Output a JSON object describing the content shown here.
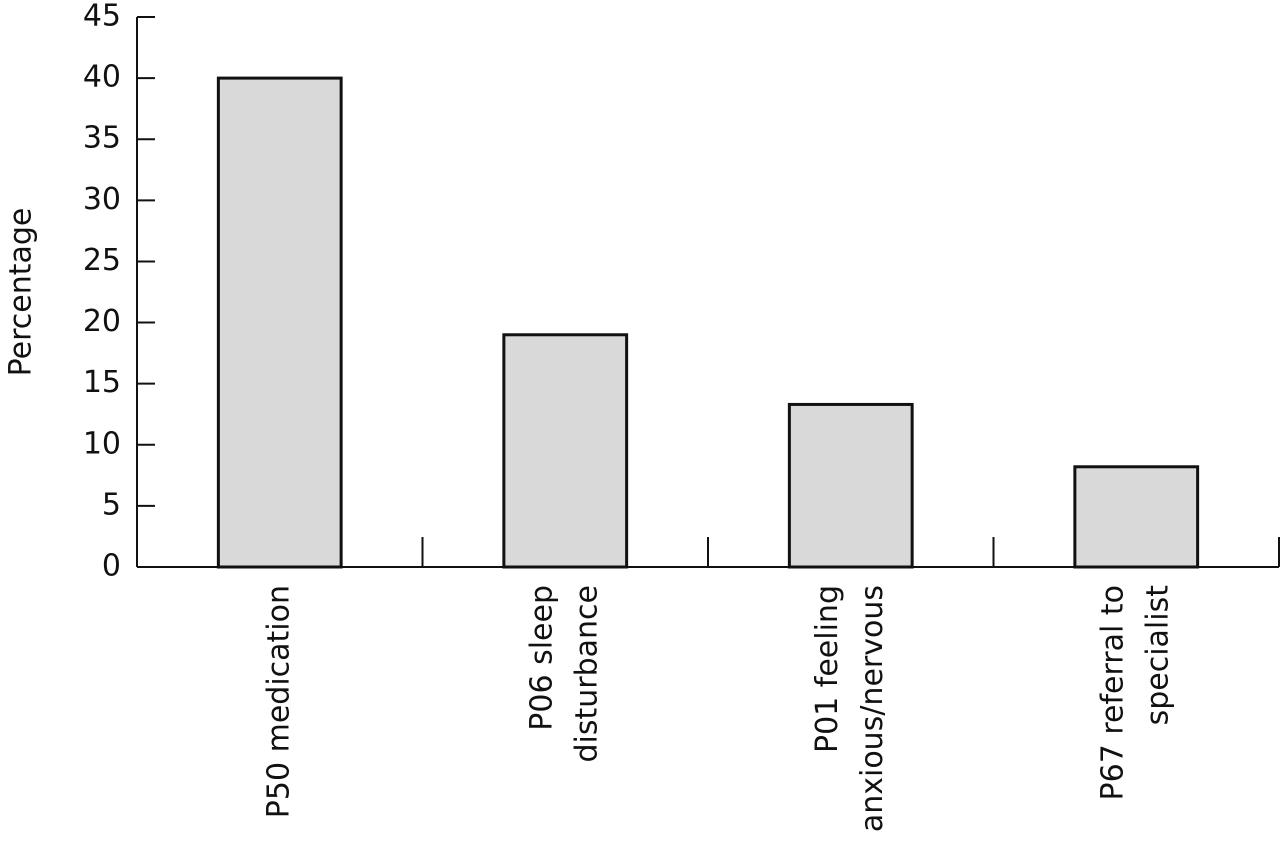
{
  "chart_data": {
    "type": "bar",
    "y_label": "Percentage",
    "categories": [
      [
        "P50 medication"
      ],
      [
        "P06 sleep",
        "disturbance"
      ],
      [
        "P01 feeling",
        "anxious/nervous"
      ],
      [
        "P67 referral to",
        "specialist"
      ]
    ],
    "values": [
      40,
      19,
      13.3,
      8.2
    ],
    "color": "#d9d9d9",
    "ylim": [
      0,
      45
    ],
    "yticks": [
      0,
      5,
      10,
      15,
      20,
      25,
      30,
      35,
      40,
      45
    ],
    "grid": false
  }
}
